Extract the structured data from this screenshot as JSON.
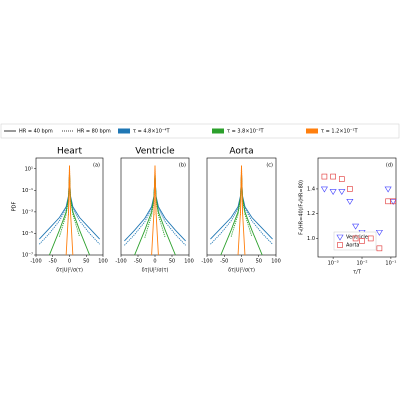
{
  "legend": [
    {
      "label": "HR = 40 bpm",
      "dash": "solid"
    },
    {
      "label": "HR = 80 bpm",
      "dash": "dotted"
    },
    {
      "label": "τ = 4.8×10⁻⁴T",
      "color": "#1f77b4"
    },
    {
      "label": "τ = 3.8×10⁻³T",
      "color": "#2ca02c"
    },
    {
      "label": "τ = 1.2×10⁻¹T",
      "color": "#ff7f0e"
    }
  ],
  "chart_data": [
    {
      "type": "line",
      "title": "Heart",
      "label": "(a)",
      "ylabel": "PDF",
      "xlabel": "δτ|U|²/σ(τ)",
      "ylog": true,
      "xlim": [
        -100,
        100
      ],
      "xticks": [
        -100,
        -50,
        0,
        50,
        100
      ],
      "ylim": [
        1e-07,
        100
      ],
      "yticks": [
        {
          "value": 10,
          "label": "10¹"
        },
        {
          "value": 0.1,
          "label": "10⁻¹"
        },
        {
          "value": 0.001,
          "label": "10⁻³"
        },
        {
          "value": 1e-05,
          "label": "10⁻⁵"
        },
        {
          "value": 1e-07,
          "label": "10⁻⁷"
        }
      ],
      "x": [
        -90,
        -60,
        -30,
        -10,
        -3,
        0,
        3,
        10,
        30,
        60,
        90
      ],
      "series": [
        {
          "color": "#1f77b4",
          "dash": "solid",
          "values": [
            3e-06,
            3e-05,
            0.0003,
            0.003,
            0.03,
            2,
            0.03,
            0.003,
            0.0003,
            3e-05,
            3e-06
          ]
        },
        {
          "color": "#1f77b4",
          "dash": "dotted",
          "values": [
            1e-06,
            1e-05,
            0.00015,
            0.002,
            0.02,
            2,
            0.02,
            0.002,
            0.00015,
            1e-05,
            1e-06
          ]
        },
        {
          "color": "#2ca02c",
          "dash": "solid",
          "values": [
            null,
            1e-07,
            2e-05,
            0.001,
            0.02,
            4,
            0.02,
            0.001,
            2e-05,
            1e-07,
            null
          ]
        },
        {
          "color": "#2ca02c",
          "dash": "dotted",
          "values": [
            null,
            null,
            5e-06,
            0.0006,
            0.015,
            4,
            0.015,
            0.0006,
            5e-06,
            null,
            null
          ]
        },
        {
          "color": "#ff7f0e",
          "dash": "solid",
          "values": [
            null,
            null,
            null,
            1e-07,
            0.001,
            20,
            0.001,
            1e-07,
            null,
            null,
            null
          ]
        },
        {
          "color": "#ff7f0e",
          "dash": "dotted",
          "values": [
            null,
            null,
            null,
            null,
            0.0005,
            20,
            0.0005,
            null,
            null,
            null,
            null
          ]
        }
      ]
    },
    {
      "type": "line",
      "title": "Ventricle",
      "label": "(b)",
      "xlabel": "δτ|U|²/σ(τ)",
      "ylog": true,
      "xlim": [
        -100,
        100
      ],
      "xticks": [
        -100,
        -50,
        0,
        50,
        100
      ],
      "ylim": [
        1e-07,
        100
      ],
      "x": [
        -90,
        -60,
        -30,
        -10,
        -3,
        0,
        3,
        10,
        30,
        60,
        90
      ],
      "series": [
        {
          "color": "#1f77b4",
          "dash": "solid",
          "values": [
            2e-06,
            2e-05,
            0.00025,
            0.003,
            0.03,
            2,
            0.03,
            0.003,
            0.00025,
            2e-05,
            2e-06
          ]
        },
        {
          "color": "#1f77b4",
          "dash": "dotted",
          "values": [
            8e-07,
            8e-06,
            0.00012,
            0.002,
            0.02,
            2,
            0.02,
            0.002,
            0.00012,
            8e-06,
            8e-07
          ]
        },
        {
          "color": "#2ca02c",
          "dash": "solid",
          "values": [
            null,
            1e-07,
            2e-05,
            0.001,
            0.02,
            4,
            0.02,
            0.001,
            2e-05,
            1e-07,
            null
          ]
        },
        {
          "color": "#2ca02c",
          "dash": "dotted",
          "values": [
            null,
            null,
            4e-06,
            0.0005,
            0.015,
            4,
            0.015,
            0.0005,
            4e-06,
            null,
            null
          ]
        },
        {
          "color": "#ff7f0e",
          "dash": "solid",
          "values": [
            null,
            null,
            null,
            1e-07,
            0.001,
            20,
            0.001,
            1e-07,
            null,
            null,
            null
          ]
        },
        {
          "color": "#ff7f0e",
          "dash": "dotted",
          "values": [
            null,
            null,
            null,
            null,
            0.0005,
            20,
            0.0005,
            null,
            null,
            null,
            null
          ]
        }
      ]
    },
    {
      "type": "line",
      "title": "Aorta",
      "label": "(c)",
      "xlabel": "δτ|U|²/σ(τ)",
      "ylog": true,
      "xlim": [
        -100,
        100
      ],
      "xticks": [
        -100,
        -50,
        0,
        50,
        100
      ],
      "ylim": [
        1e-07,
        100
      ],
      "x": [
        -90,
        -60,
        -30,
        -10,
        -3,
        0,
        3,
        10,
        30,
        60,
        90
      ],
      "series": [
        {
          "color": "#1f77b4",
          "dash": "solid",
          "values": [
            3e-06,
            3e-05,
            0.0003,
            0.003,
            0.03,
            2,
            0.03,
            0.003,
            0.0003,
            3e-05,
            3e-06
          ]
        },
        {
          "color": "#1f77b4",
          "dash": "dotted",
          "values": [
            1e-06,
            1e-05,
            0.00015,
            0.002,
            0.02,
            2,
            0.02,
            0.002,
            0.00015,
            1e-05,
            1e-06
          ]
        },
        {
          "color": "#2ca02c",
          "dash": "solid",
          "values": [
            null,
            1e-07,
            2e-05,
            0.001,
            0.02,
            4,
            0.02,
            0.001,
            2e-05,
            1e-07,
            null
          ]
        },
        {
          "color": "#2ca02c",
          "dash": "dotted",
          "values": [
            null,
            null,
            5e-06,
            0.0006,
            0.015,
            4,
            0.015,
            0.0006,
            5e-06,
            null,
            null
          ]
        },
        {
          "color": "#ff7f0e",
          "dash": "solid",
          "values": [
            null,
            null,
            null,
            1e-07,
            0.001,
            20,
            0.001,
            1e-07,
            null,
            null,
            null
          ]
        },
        {
          "color": "#ff7f0e",
          "dash": "dotted",
          "values": [
            null,
            null,
            null,
            null,
            0.0005,
            20,
            0.0005,
            null,
            null,
            null,
            null
          ]
        }
      ]
    },
    {
      "type": "scatter",
      "label": "(d)",
      "ylabel": "F₄(HR=40)/F₄(HR=80)",
      "xlabel": "τ/T",
      "xlog": true,
      "xlim": [
        0.0003,
        0.15
      ],
      "xticks": [
        {
          "value": 0.001,
          "label": "10⁻³"
        },
        {
          "value": 0.01,
          "label": "10⁻²"
        },
        {
          "value": 0.1,
          "label": "10⁻¹"
        }
      ],
      "ylim": [
        0.85,
        1.65
      ],
      "yticks": [
        {
          "value": 1,
          "label": "1.0"
        },
        1.2,
        1.4
      ],
      "x": [
        0.0005,
        0.001,
        0.002,
        0.0038,
        0.006,
        0.01,
        0.02,
        0.04,
        0.08,
        0.12
      ],
      "series": [
        {
          "name": "Ventricle",
          "color": "#4040ff",
          "marker": "triangle",
          "values": [
            1.4,
            1.38,
            1.38,
            1.3,
            1.1,
            1.05,
            1.0,
            1.05,
            1.4,
            1.3
          ]
        },
        {
          "name": "Aorta",
          "color": "#e03030",
          "marker": "square",
          "values": [
            1.5,
            1.5,
            1.48,
            1.4,
            1.0,
            0.98,
            1.0,
            0.92,
            1.3,
            1.3
          ]
        }
      ]
    }
  ]
}
